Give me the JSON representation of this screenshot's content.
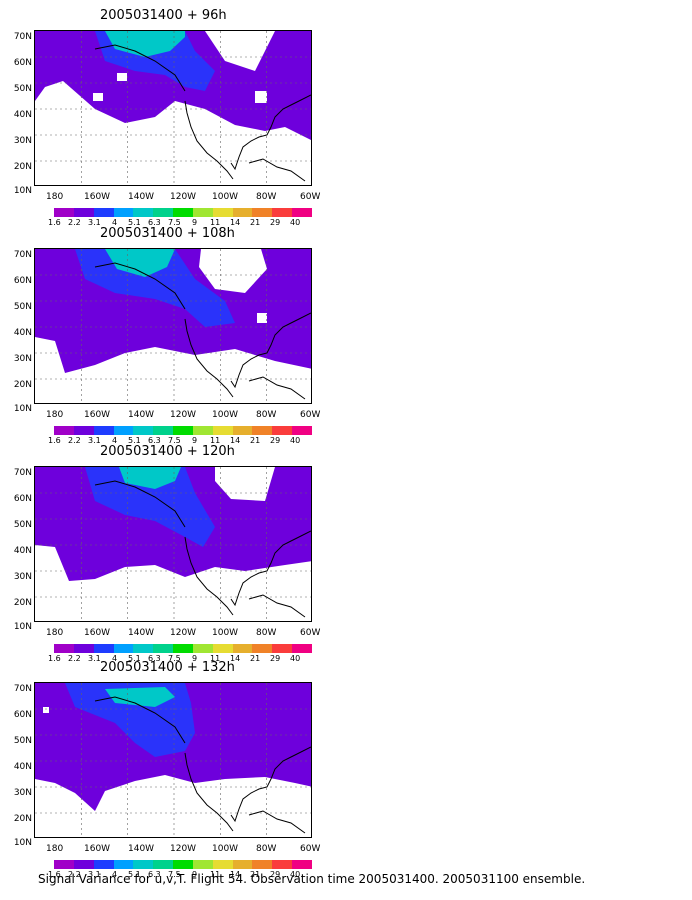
{
  "panels": [
    {
      "title": "2005031400 + 96h"
    },
    {
      "title": "2005031400 + 108h"
    },
    {
      "title": "2005031400 + 120h"
    },
    {
      "title": "2005031400 + 132h"
    }
  ],
  "lat_labels": [
    "70N",
    "60N",
    "50N",
    "40N",
    "30N",
    "20N",
    "10N"
  ],
  "lon_labels": [
    "180",
    "160W",
    "140W",
    "120W",
    "100W",
    "80W",
    "60W"
  ],
  "colorbar": {
    "labels": [
      "1.6",
      "2.2",
      "3.1",
      "4",
      "5.1",
      "6.3",
      "7.5",
      "9",
      "11",
      "14",
      "21",
      "29",
      "40"
    ],
    "colors": [
      "#a000c8",
      "#6e00dc",
      "#1e3cff",
      "#00a0ff",
      "#00c8c8",
      "#00d28c",
      "#00dc00",
      "#a0e632",
      "#e6dc32",
      "#e6af2d",
      "#f08228",
      "#fa3c3c",
      "#f00082"
    ]
  },
  "caption": "Signal Variance for u,v,T. Flight 54. Observation time 2005031400. 2005031100 ensemble."
}
